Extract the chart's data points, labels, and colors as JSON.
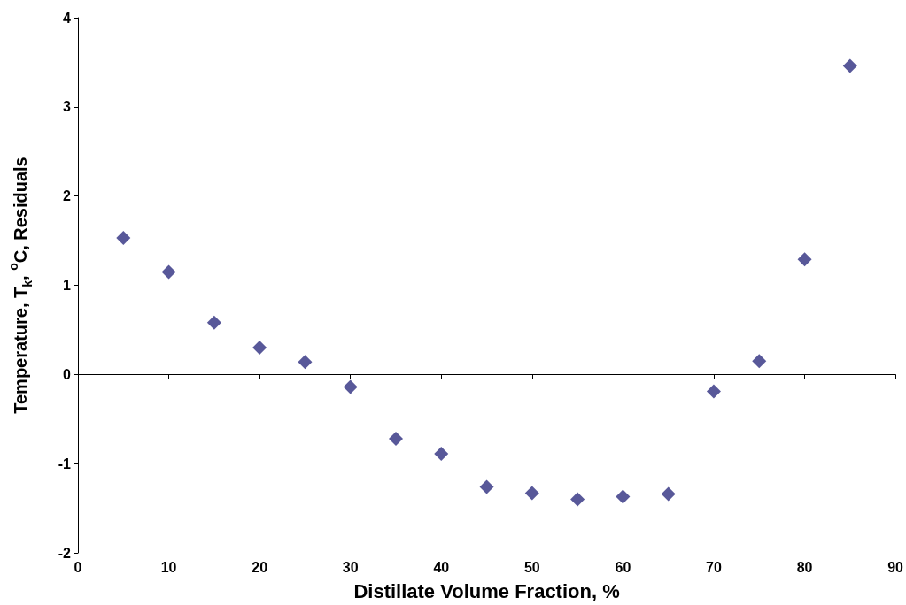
{
  "chart_data": {
    "type": "scatter",
    "xlabel": "Distillate Volume Fraction, %",
    "ylabel": "Temperature, T$_{k}$, $^{o}$C, Residuals",
    "x": [
      5,
      10,
      15,
      20,
      25,
      30,
      35,
      40,
      45,
      50,
      55,
      60,
      65,
      70,
      75,
      80,
      85
    ],
    "series": [
      {
        "color": "#2e2e80",
        "values": [
          1.53,
          1.15,
          0.58,
          0.3,
          0.14,
          -0.14,
          -0.72,
          -0.89,
          -1.26,
          -1.33,
          -1.4,
          -1.37,
          -1.34,
          -0.19,
          0.15,
          1.29,
          3.46
        ]
      }
    ],
    "xlim": [
      0,
      90
    ],
    "xticks": [
      0,
      10,
      20,
      30,
      40,
      50,
      60,
      70,
      80,
      90
    ],
    "ylim": [
      -2,
      4
    ],
    "yticks": [
      -2,
      -1,
      0,
      1,
      2,
      3,
      4
    ],
    "marker": "diamond"
  }
}
